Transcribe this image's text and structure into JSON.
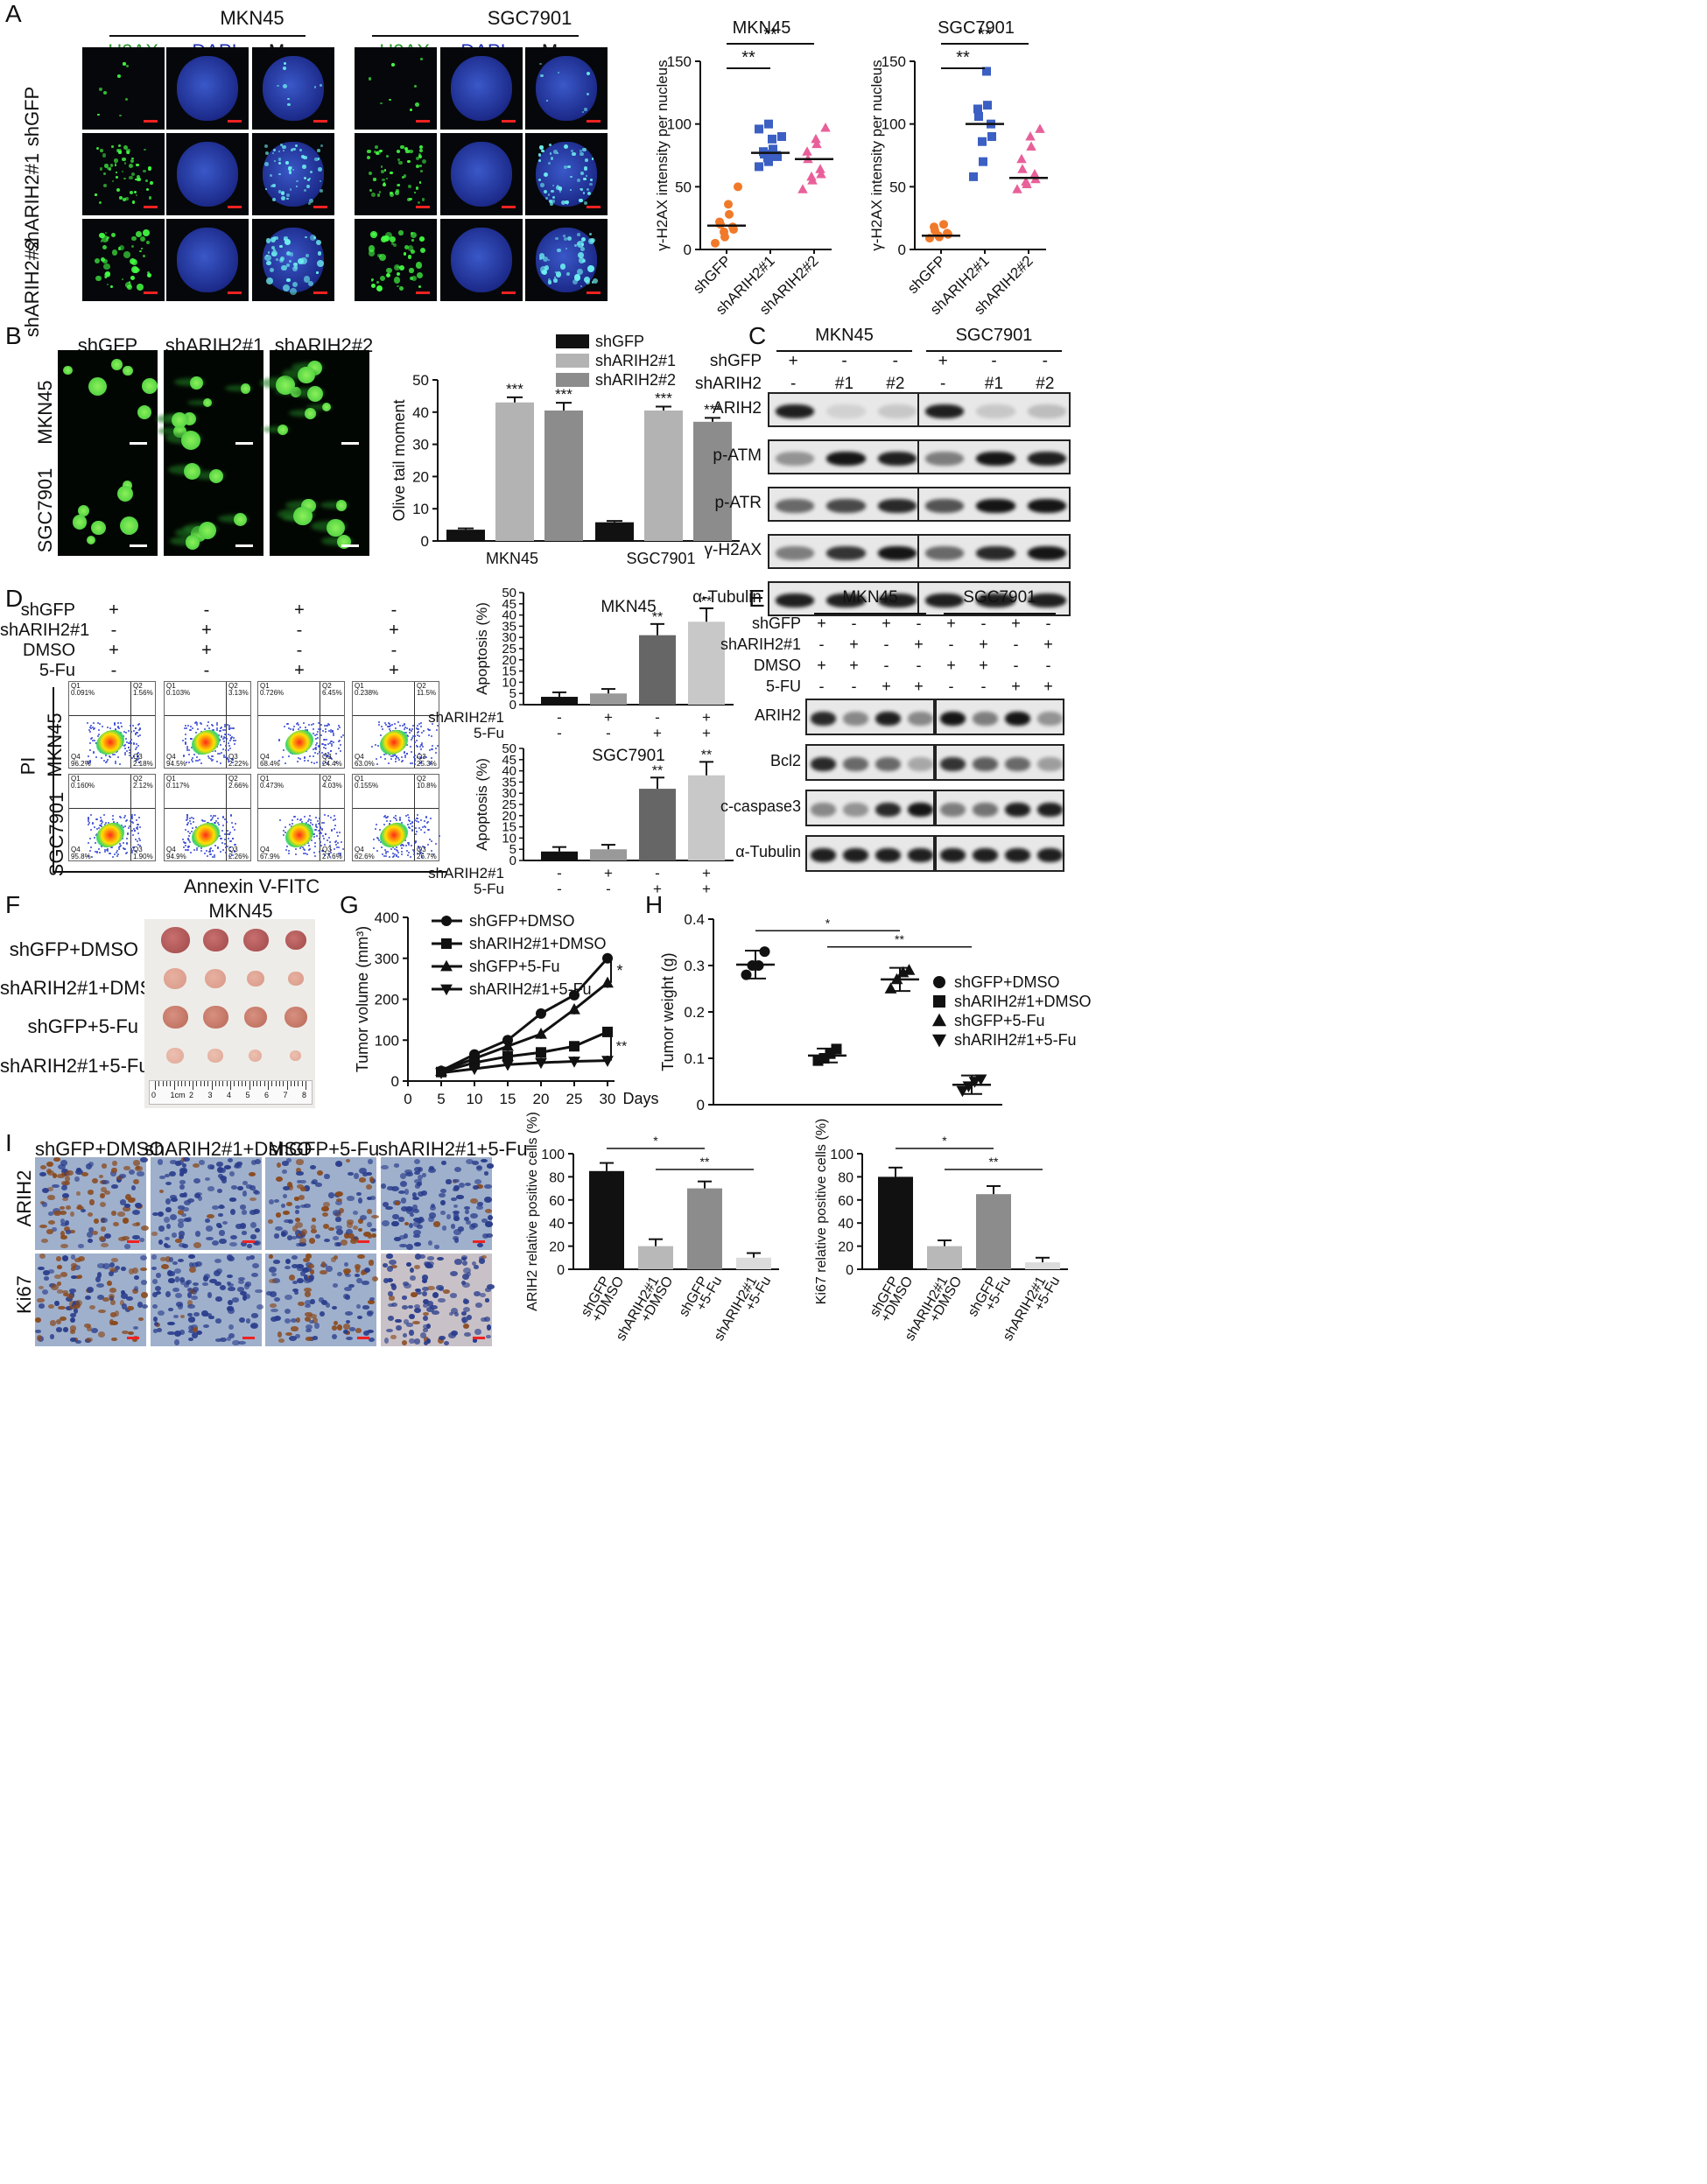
{
  "panelA": {
    "label": "A",
    "groups": [
      "MKN45",
      "SGC7901"
    ],
    "channels": [
      "γ-H2AX",
      "DAPI",
      "Merge"
    ],
    "rows": [
      "shGFP",
      "shARIH2#1",
      "shARIH2#2"
    ],
    "chart_data": [
      {
        "type": "scatter",
        "title": "MKN45",
        "ylabel": "γ-H2AX intensity per nucleus",
        "ylim": [
          0,
          150
        ],
        "yticks": [
          0,
          50,
          100,
          150
        ],
        "categories": [
          "shGFP",
          "shARIH2#1",
          "shARIH2#2"
        ],
        "sig": [
          "**",
          "**"
        ],
        "points": [
          [
            5,
            10,
            14,
            16,
            18,
            20,
            22,
            28,
            36,
            50
          ],
          [
            66,
            70,
            73,
            74,
            75,
            76,
            78,
            80,
            88,
            90,
            96,
            100
          ],
          [
            48,
            55,
            58,
            60,
            64,
            72,
            78,
            84,
            88,
            97
          ]
        ],
        "medians": [
          19,
          77,
          72
        ],
        "colors": [
          "#f07a2a",
          "#3b5fc2",
          "#e8609a"
        ],
        "markers": [
          "circle",
          "square",
          "triangle"
        ]
      },
      {
        "type": "scatter",
        "title": "SGC7901",
        "ylabel": "γ-H2AX intensity per nucleus",
        "ylim": [
          0,
          150
        ],
        "yticks": [
          0,
          50,
          100,
          150
        ],
        "categories": [
          "shGFP",
          "shARIH2#1",
          "shARIH2#2"
        ],
        "sig": [
          "**",
          "**"
        ],
        "points": [
          [
            9,
            10,
            11,
            12,
            13,
            15,
            18,
            20
          ],
          [
            58,
            70,
            86,
            90,
            100,
            106,
            112,
            115,
            142
          ],
          [
            48,
            52,
            54,
            56,
            60,
            64,
            72,
            82,
            90,
            96
          ]
        ],
        "medians": [
          11,
          100,
          57
        ],
        "colors": [
          "#f07a2a",
          "#3b5fc2",
          "#e8609a"
        ],
        "markers": [
          "circle",
          "square",
          "triangle"
        ]
      }
    ]
  },
  "panelB": {
    "label": "B",
    "cols": [
      "shGFP",
      "shARIH2#1",
      "shARIH2#2"
    ],
    "rows": [
      "MKN45",
      "SGC7901"
    ],
    "chart_data": {
      "type": "bar",
      "categories": [
        "MKN45",
        "SGC7901"
      ],
      "ylabel": "Olive tail moment",
      "ylim": [
        0,
        50
      ],
      "yticks": [
        0,
        10,
        20,
        30,
        40,
        50
      ],
      "series": [
        {
          "name": "shGFP",
          "values": [
            3.5,
            5.8
          ],
          "errors": [
            0.4,
            0.4
          ],
          "color": "#111111"
        },
        {
          "name": "shARIH2#1",
          "values": [
            43,
            40.5
          ],
          "errors": [
            1.6,
            1.2
          ],
          "color": "#b3b3b3"
        },
        {
          "name": "shARIH2#2",
          "values": [
            40.5,
            37
          ],
          "errors": [
            2.4,
            1.2
          ],
          "color": "#8c8c8c"
        }
      ],
      "sig": [
        "",
        "***",
        "***"
      ]
    }
  },
  "panelC": {
    "label": "C",
    "groups": [
      "MKN45",
      "SGC7901"
    ],
    "conds": [
      {
        "name": "shGFP",
        "vals": [
          "+",
          "-",
          "-"
        ]
      },
      {
        "name": "shARIH2",
        "vals": [
          "-",
          "#1",
          "#2"
        ]
      }
    ],
    "proteins": [
      "ARIH2",
      "p-ATM",
      "p-ATR",
      "γ-H2AX",
      "α-Tubulin"
    ]
  },
  "panelD": {
    "label": "D",
    "conds": [
      {
        "name": "shGFP",
        "vals": [
          "+",
          "-",
          "+",
          "-"
        ]
      },
      {
        "name": "shARIH2#1",
        "vals": [
          "-",
          "+",
          "-",
          "+"
        ]
      },
      {
        "name": "DMSO",
        "vals": [
          "+",
          "+",
          "-",
          "-"
        ]
      },
      {
        "name": "5-Fu",
        "vals": [
          "-",
          "-",
          "+",
          "+"
        ]
      }
    ],
    "rows": [
      "MKN45",
      "SGC7901"
    ],
    "yaxis": "PI",
    "xaxis": "Annexin V-FITC",
    "flow": [
      [
        [
          "0.091%",
          "1.56%",
          "96.2%",
          "2.18%"
        ],
        [
          "0.103%",
          "3.13%",
          "94.5%",
          "2.22%"
        ],
        [
          "0.726%",
          "6.45%",
          "68.4%",
          "24.4%"
        ],
        [
          "0.238%",
          "11.5%",
          "63.0%",
          "25.3%"
        ]
      ],
      [
        [
          "0.160%",
          "2.12%",
          "95.8%",
          "1.90%"
        ],
        [
          "0.117%",
          "2.66%",
          "94.9%",
          "2.26%"
        ],
        [
          "0.473%",
          "4.03%",
          "67.9%",
          "27.6%"
        ],
        [
          "0.155%",
          "10.8%",
          "62.6%",
          "26.7%"
        ]
      ]
    ],
    "qnames": [
      "Q1",
      "Q2",
      "Q4",
      "Q3"
    ],
    "chart_data": [
      {
        "type": "bar",
        "title": "MKN45",
        "ylabel": "Apoptosis (%)",
        "ylim": [
          0,
          50
        ],
        "yticks": [
          0,
          5,
          10,
          15,
          20,
          25,
          30,
          35,
          40,
          45,
          50
        ],
        "values": [
          3.5,
          5,
          31,
          37
        ],
        "errors": [
          2,
          2,
          5,
          6
        ],
        "colors": [
          "#111111",
          "#999999",
          "#666666",
          "#c8c8c8"
        ],
        "sig": [
          "",
          "",
          "**",
          "**"
        ],
        "conds": [
          {
            "name": "shARIH2#1",
            "vals": [
              "-",
              "+",
              "-",
              "+"
            ]
          },
          {
            "name": "5-Fu",
            "vals": [
              "-",
              "-",
              "+",
              "+"
            ]
          }
        ]
      },
      {
        "type": "bar",
        "title": "SGC7901",
        "ylabel": "Apoptosis (%)",
        "ylim": [
          0,
          50
        ],
        "yticks": [
          0,
          5,
          10,
          15,
          20,
          25,
          30,
          35,
          40,
          45,
          50
        ],
        "values": [
          4,
          5,
          32,
          38
        ],
        "errors": [
          2,
          2,
          5,
          6
        ],
        "colors": [
          "#111111",
          "#999999",
          "#666666",
          "#c8c8c8"
        ],
        "sig": [
          "",
          "",
          "**",
          "**"
        ],
        "conds": [
          {
            "name": "shARIH2#1",
            "vals": [
              "-",
              "+",
              "-",
              "+"
            ]
          },
          {
            "name": "5-Fu",
            "vals": [
              "-",
              "-",
              "+",
              "+"
            ]
          }
        ]
      }
    ]
  },
  "panelE": {
    "label": "E",
    "groups": [
      "MKN45",
      "SGC7901"
    ],
    "conds": [
      {
        "name": "shGFP",
        "vals": [
          "+",
          "-",
          "+",
          "-"
        ]
      },
      {
        "name": "shARIH2#1",
        "vals": [
          "-",
          "+",
          "-",
          "+"
        ]
      },
      {
        "name": "DMSO",
        "vals": [
          "+",
          "+",
          "-",
          "-"
        ]
      },
      {
        "name": "5-FU",
        "vals": [
          "-",
          "-",
          "+",
          "+"
        ]
      }
    ],
    "proteins": [
      "ARIH2",
      "Bcl2",
      "c-caspase3",
      "α-Tubulin"
    ]
  },
  "panelF": {
    "label": "F",
    "title": "MKN45",
    "rows": [
      "shGFP+DMSO",
      "shARIH2#1+DMSO",
      "shGFP+5-Fu",
      "shARIH2#1+5-Fu"
    ],
    "ruler": [
      "0",
      "1cm",
      "2",
      "3",
      "4",
      "5",
      "6",
      "7",
      "8"
    ]
  },
  "panelG": {
    "label": "G",
    "chart_data": {
      "type": "line",
      "x": [
        5,
        10,
        15,
        20,
        25,
        30
      ],
      "xlabel": "Days",
      "ylabel": "Tumor volume (mm³)",
      "ylim": [
        0,
        400
      ],
      "yticks": [
        0,
        100,
        200,
        300,
        400
      ],
      "xticks": [
        0,
        5,
        10,
        15,
        20,
        25,
        30
      ],
      "series": [
        {
          "name": "shGFP+DMSO",
          "values": [
            25,
            65,
            100,
            165,
            210,
            300
          ],
          "marker": "circle"
        },
        {
          "name": "shARIH2#1+DMSO",
          "values": [
            22,
            45,
            60,
            70,
            85,
            120
          ],
          "marker": "square"
        },
        {
          "name": "shGFP+5-Fu",
          "values": [
            24,
            55,
            85,
            115,
            175,
            240
          ],
          "marker": "triangle"
        },
        {
          "name": "shARIH2#1+5-Fu",
          "values": [
            20,
            30,
            40,
            45,
            48,
            50
          ],
          "marker": "tri-down"
        }
      ],
      "sig": [
        "*",
        "**"
      ]
    }
  },
  "panelH": {
    "label": "H",
    "chart_data": {
      "type": "scatter",
      "ylabel": "Tumor weight (g)",
      "ylim": [
        0,
        0.4
      ],
      "yticks": [
        0,
        0.1,
        0.2,
        0.3,
        0.4
      ],
      "groups": [
        {
          "name": "shGFP+DMSO",
          "values": [
            0.28,
            0.3,
            0.3,
            0.33
          ],
          "mean": 0.302,
          "sd": 0.03,
          "marker": "circle"
        },
        {
          "name": "shARIH2#1+DMSO",
          "values": [
            0.095,
            0.1,
            0.11,
            0.12
          ],
          "mean": 0.106,
          "sd": 0.015,
          "marker": "square"
        },
        {
          "name": "shGFP+5-Fu",
          "values": [
            0.25,
            0.27,
            0.285,
            0.29
          ],
          "mean": 0.27,
          "sd": 0.025,
          "marker": "triangle"
        },
        {
          "name": "shARIH2#1+5-Fu",
          "values": [
            0.03,
            0.04,
            0.05,
            0.055
          ],
          "mean": 0.043,
          "sd": 0.02,
          "marker": "tri-down"
        }
      ],
      "sig": [
        "*",
        "**"
      ]
    }
  },
  "panelI": {
    "label": "I",
    "cols": [
      "shGFP+DMSO",
      "shARIH2#1+DMSO",
      "shGFP+5-Fu",
      "shARIH2#1+5-Fu"
    ],
    "rows": [
      "ARIH2",
      "Ki67"
    ],
    "chart_data": [
      {
        "type": "bar",
        "ylabel": "ARIH2 relative positive cells (%)",
        "ylim": [
          0,
          100
        ],
        "yticks": [
          0,
          20,
          40,
          60,
          80,
          100
        ],
        "categories": [
          "shGFP\n+DMSO",
          "shARIH2#1\n+DMSO",
          "shGFP\n+5-Fu",
          "shARIH2#1\n+5-Fu"
        ],
        "values": [
          85,
          20,
          70,
          10
        ],
        "errors": [
          7,
          6,
          6,
          4
        ],
        "colors": [
          "#111111",
          "#b8b8b8",
          "#8c8c8c",
          "#dcdcdc"
        ],
        "sig": [
          "*",
          "**"
        ]
      },
      {
        "type": "bar",
        "ylabel": "Ki67 relative positive cells (%)",
        "ylim": [
          0,
          100
        ],
        "yticks": [
          0,
          20,
          40,
          60,
          80,
          100
        ],
        "categories": [
          "shGFP\n+DMSO",
          "shARIH2#1\n+DMSO",
          "shGFP\n+5-Fu",
          "shARIH2#1\n+5-Fu"
        ],
        "values": [
          80,
          20,
          65,
          6
        ],
        "errors": [
          8,
          5,
          7,
          4
        ],
        "colors": [
          "#111111",
          "#b8b8b8",
          "#8c8c8c",
          "#dcdcdc"
        ],
        "sig": [
          "*",
          "**"
        ]
      }
    ]
  }
}
